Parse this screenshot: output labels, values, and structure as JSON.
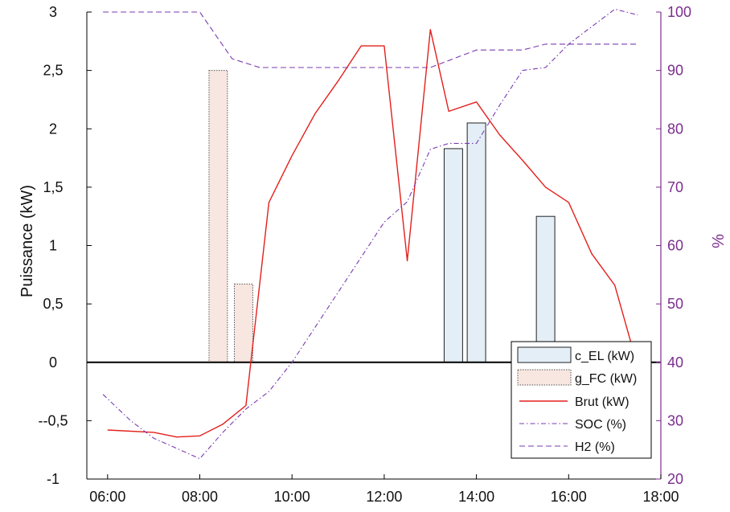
{
  "colors": {
    "axis": "#000000",
    "right_axis": "#7b2d8e",
    "bar_el_fill": "#e3eef6",
    "bar_el_stroke": "#222222",
    "bar_fc_fill": "#f8e6e0",
    "bar_fc_stroke": "#555555",
    "brut": "#e3201b",
    "soc": "#7a3bb0",
    "h2": "#7a3bb0"
  },
  "chart_data": {
    "type": "bar",
    "grid": false,
    "legend_position": "bottom-right",
    "xlabel": "",
    "x_ticks": [
      "06:00",
      "08:00",
      "10:00",
      "12:00",
      "14:00",
      "16:00",
      "18:00"
    ],
    "x_range_hours": [
      5.55,
      18.0
    ],
    "y_left": {
      "label": "Puissance (kW)",
      "range": [
        -1,
        3
      ],
      "ticks": [
        {
          "value": 3,
          "label": "3"
        },
        {
          "value": 2.5,
          "label": "2,5"
        },
        {
          "value": 2,
          "label": "2"
        },
        {
          "value": 1.5,
          "label": "1,5"
        },
        {
          "value": 1,
          "label": "1"
        },
        {
          "value": 0.5,
          "label": "0,5"
        },
        {
          "value": 0,
          "label": "0"
        },
        {
          "value": -0.5,
          "label": "--0,5"
        },
        {
          "value": -1,
          "label": "-1"
        }
      ]
    },
    "y_right": {
      "label": "%",
      "range": [
        20,
        100
      ],
      "ticks": [
        {
          "value": 100,
          "label": "100"
        },
        {
          "value": 90,
          "label": "90"
        },
        {
          "value": 80,
          "label": "80"
        },
        {
          "value": 70,
          "label": "70"
        },
        {
          "value": 60,
          "label": "60"
        },
        {
          "value": 50,
          "label": "50"
        },
        {
          "value": 40,
          "label": "40"
        },
        {
          "value": 30,
          "label": "30"
        },
        {
          "value": 20,
          "label": "20"
        }
      ]
    },
    "bars": [
      {
        "series": "c_EL (kW)",
        "x_start": 13.3,
        "x_end": 13.7,
        "value": 1.83
      },
      {
        "series": "c_EL (kW)",
        "x_start": 13.8,
        "x_end": 14.2,
        "value": 2.05
      },
      {
        "series": "c_EL (kW)",
        "x_start": 15.3,
        "x_end": 15.7,
        "value": 1.25
      },
      {
        "series": "g_FC (kW)",
        "x_start": 8.2,
        "x_end": 8.6,
        "value": 2.5
      },
      {
        "series": "g_FC (kW)",
        "x_start": 8.75,
        "x_end": 9.15,
        "value": 0.67
      }
    ],
    "series": [
      {
        "name": "Brut (kW)",
        "axis": "left",
        "style": "solid",
        "points": [
          [
            6.0,
            -0.58
          ],
          [
            7.0,
            -0.6
          ],
          [
            7.5,
            -0.64
          ],
          [
            8.0,
            -0.63
          ],
          [
            8.5,
            -0.53
          ],
          [
            9.0,
            -0.37
          ],
          [
            9.5,
            1.37
          ],
          [
            10.0,
            1.77
          ],
          [
            10.5,
            2.13
          ],
          [
            11.0,
            2.41
          ],
          [
            11.5,
            2.71
          ],
          [
            12.0,
            2.71
          ],
          [
            12.5,
            0.87
          ],
          [
            13.0,
            2.85
          ],
          [
            13.4,
            2.15
          ],
          [
            14.0,
            2.23
          ],
          [
            14.5,
            1.95
          ],
          [
            15.0,
            1.73
          ],
          [
            15.5,
            1.5
          ],
          [
            16.0,
            1.37
          ],
          [
            16.5,
            0.93
          ],
          [
            17.0,
            0.66
          ],
          [
            17.4,
            0.1
          ]
        ]
      },
      {
        "name": "SOC (%)",
        "axis": "right",
        "style": "dash-dot",
        "points": [
          [
            5.9,
            34.5
          ],
          [
            6.5,
            30.0
          ],
          [
            7.0,
            27.0
          ],
          [
            8.0,
            23.5
          ],
          [
            8.5,
            28.0
          ],
          [
            9.0,
            32.0
          ],
          [
            9.5,
            35.0
          ],
          [
            10.0,
            40.0
          ],
          [
            10.5,
            46.0
          ],
          [
            11.0,
            52.0
          ],
          [
            11.5,
            58.0
          ],
          [
            12.0,
            64.0
          ],
          [
            12.5,
            67.5
          ],
          [
            13.0,
            76.5
          ],
          [
            13.4,
            77.5
          ],
          [
            14.0,
            77.5
          ],
          [
            14.5,
            84.0
          ],
          [
            15.0,
            90.0
          ],
          [
            15.5,
            90.5
          ],
          [
            16.0,
            94.5
          ],
          [
            16.5,
            97.5
          ],
          [
            17.0,
            100.5
          ],
          [
            17.5,
            99.5
          ]
        ]
      },
      {
        "name": "H2 (%)",
        "axis": "right",
        "style": "dashed",
        "points": [
          [
            5.9,
            100.0
          ],
          [
            8.0,
            100.0
          ],
          [
            8.7,
            92.0
          ],
          [
            9.3,
            90.5
          ],
          [
            12.0,
            90.5
          ],
          [
            13.0,
            90.5
          ],
          [
            14.0,
            93.5
          ],
          [
            15.0,
            93.5
          ],
          [
            15.5,
            94.5
          ],
          [
            17.5,
            94.5
          ]
        ]
      }
    ],
    "legend": [
      {
        "key": "c_EL",
        "label": "c_EL (kW)",
        "kind": "box-el"
      },
      {
        "key": "g_FC",
        "label": "g_FC (kW)",
        "kind": "box-fc"
      },
      {
        "key": "brut",
        "label": "Brut (kW)",
        "kind": "line-brut"
      },
      {
        "key": "soc",
        "label": "SOC (%)",
        "kind": "line-soc"
      },
      {
        "key": "h2",
        "label": "H2 (%)",
        "kind": "line-h2"
      }
    ]
  }
}
